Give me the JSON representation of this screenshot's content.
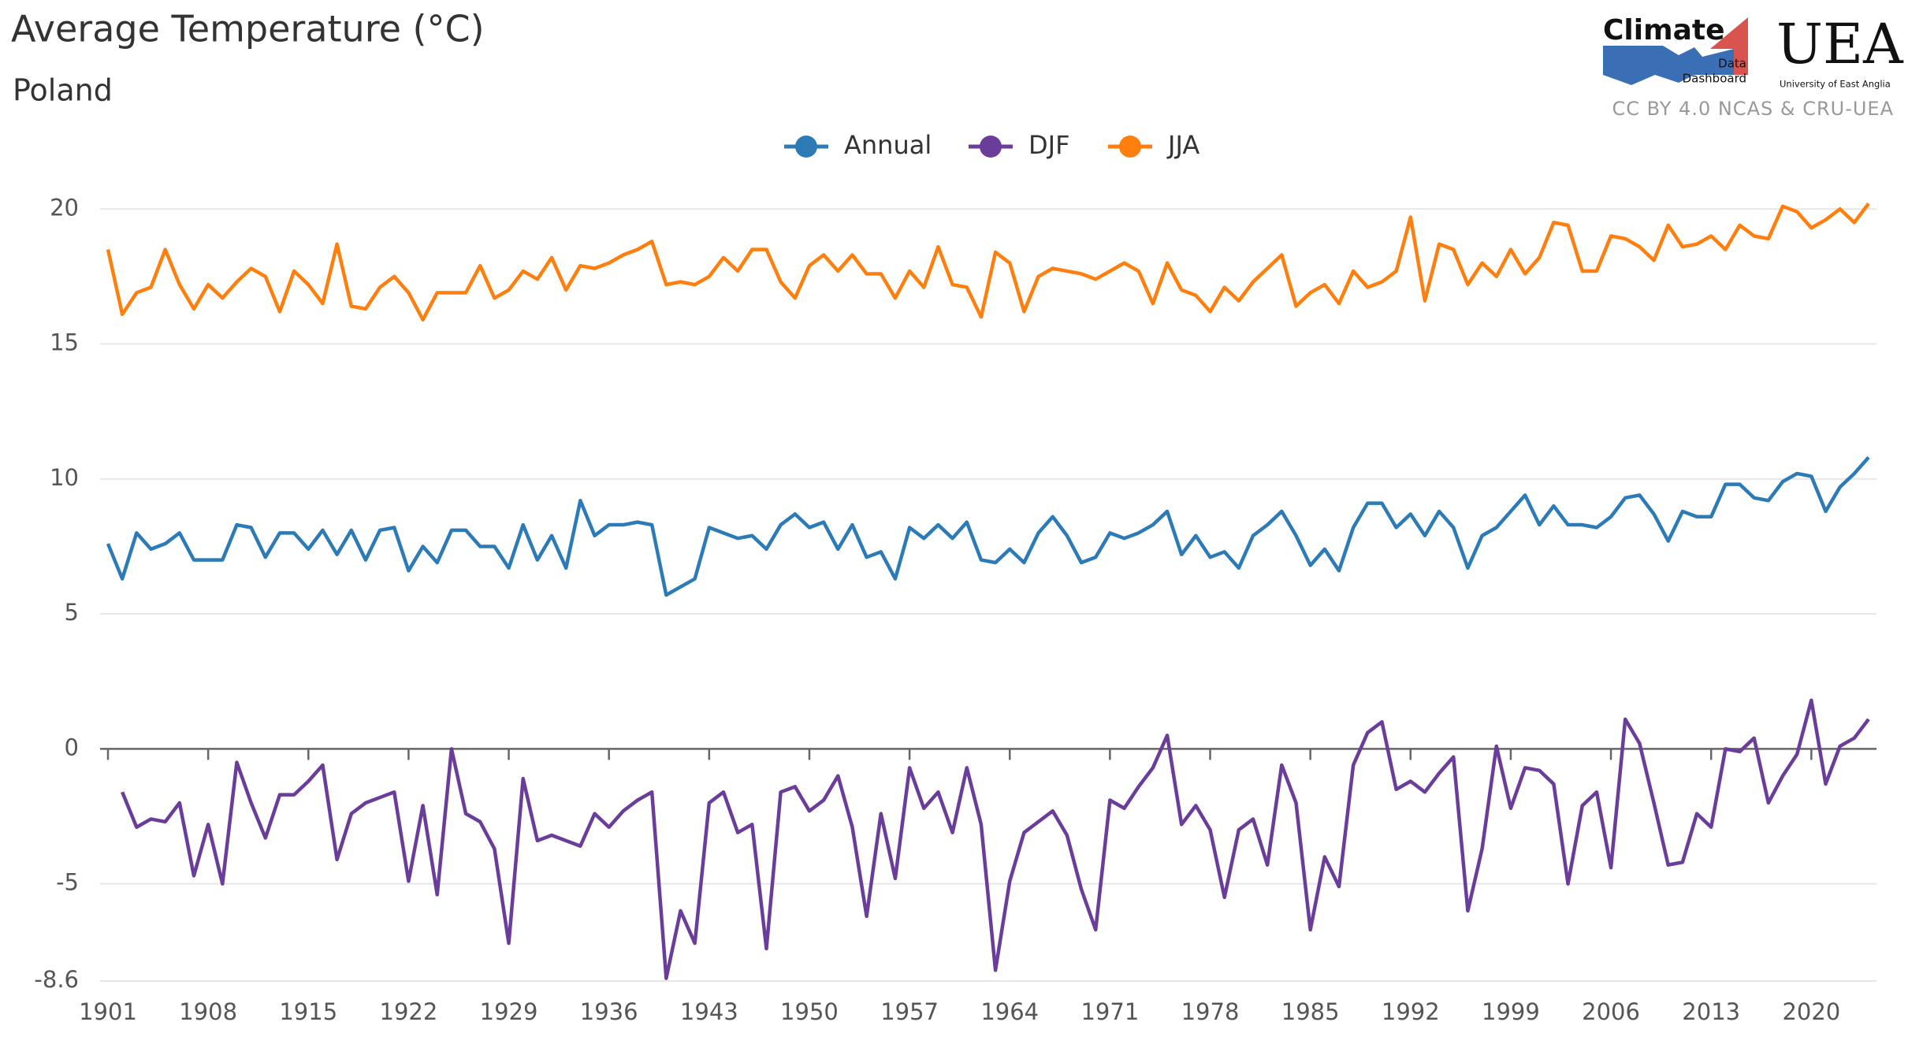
{
  "chart_data": {
    "type": "line",
    "title": "Average Temperature (°C)",
    "subtitle": "Poland",
    "x": [
      1901,
      1902,
      1903,
      1904,
      1905,
      1906,
      1907,
      1908,
      1909,
      1910,
      1911,
      1912,
      1913,
      1914,
      1915,
      1916,
      1917,
      1918,
      1919,
      1920,
      1921,
      1922,
      1923,
      1924,
      1925,
      1926,
      1927,
      1928,
      1929,
      1930,
      1931,
      1932,
      1933,
      1934,
      1935,
      1936,
      1937,
      1938,
      1939,
      1940,
      1941,
      1942,
      1943,
      1944,
      1945,
      1946,
      1947,
      1948,
      1949,
      1950,
      1951,
      1952,
      1953,
      1954,
      1955,
      1956,
      1957,
      1958,
      1959,
      1960,
      1961,
      1962,
      1963,
      1964,
      1965,
      1966,
      1967,
      1968,
      1969,
      1970,
      1971,
      1972,
      1973,
      1974,
      1975,
      1976,
      1977,
      1978,
      1979,
      1980,
      1981,
      1982,
      1983,
      1984,
      1985,
      1986,
      1987,
      1988,
      1989,
      1990,
      1991,
      1992,
      1993,
      1994,
      1995,
      1996,
      1997,
      1998,
      1999,
      2000,
      2001,
      2002,
      2003,
      2004,
      2005,
      2006,
      2007,
      2008,
      2009,
      2010,
      2011,
      2012,
      2013,
      2014,
      2015,
      2016,
      2017,
      2018,
      2019,
      2020,
      2021,
      2022,
      2023,
      2024
    ],
    "series": [
      {
        "name": "Annual",
        "color": "#2c7bb6",
        "values": [
          7.6,
          6.3,
          8.0,
          7.4,
          7.6,
          8.0,
          7.0,
          7.0,
          7.0,
          8.3,
          8.2,
          7.1,
          8.0,
          8.0,
          7.4,
          8.1,
          7.2,
          8.1,
          7.0,
          8.1,
          8.2,
          6.6,
          7.5,
          6.9,
          8.1,
          8.1,
          7.5,
          7.5,
          6.7,
          8.3,
          7.0,
          7.9,
          6.7,
          9.2,
          7.9,
          8.3,
          8.3,
          8.4,
          8.3,
          5.7,
          6.0,
          6.3,
          8.2,
          8.0,
          7.8,
          7.9,
          7.4,
          8.3,
          8.7,
          8.2,
          8.4,
          7.4,
          8.3,
          7.1,
          7.3,
          6.3,
          8.2,
          7.8,
          8.3,
          7.8,
          8.4,
          7.0,
          6.9,
          7.4,
          6.9,
          8.0,
          8.6,
          7.9,
          6.9,
          7.1,
          8.0,
          7.8,
          8.0,
          8.3,
          8.8,
          7.2,
          7.9,
          7.1,
          7.3,
          6.7,
          7.9,
          8.3,
          8.8,
          7.9,
          6.8,
          7.4,
          6.6,
          8.2,
          9.1,
          9.1,
          8.2,
          8.7,
          7.9,
          8.8,
          8.2,
          6.7,
          7.9,
          8.2,
          8.8,
          9.4,
          8.3,
          9.0,
          8.3,
          8.3,
          8.2,
          8.6,
          9.3,
          9.4,
          8.7,
          7.7,
          8.8,
          8.6,
          8.6,
          9.8,
          9.8,
          9.3,
          9.2,
          9.9,
          10.2,
          10.1,
          8.8,
          9.7,
          10.2,
          10.8
        ]
      },
      {
        "name": "DJF",
        "color": "#6a3d9a",
        "values": [
          null,
          -1.6,
          -2.9,
          -2.6,
          -2.7,
          -2.0,
          -4.7,
          -2.8,
          -5.0,
          -0.5,
          -2.0,
          -3.3,
          -1.7,
          -1.7,
          -1.2,
          -0.6,
          -4.1,
          -2.4,
          -2.0,
          -1.8,
          -1.6,
          -4.9,
          -2.1,
          -5.4,
          0.0,
          -2.4,
          -2.7,
          -3.7,
          -7.2,
          -1.1,
          -3.4,
          -3.2,
          -3.4,
          -3.6,
          -2.4,
          -2.9,
          -2.3,
          -1.9,
          -1.6,
          -8.5,
          -6.0,
          -7.2,
          -2.0,
          -1.6,
          -3.1,
          -2.8,
          -7.4,
          -1.6,
          -1.4,
          -2.3,
          -1.9,
          -1.0,
          -2.9,
          -6.2,
          -2.4,
          -4.8,
          -0.7,
          -2.2,
          -1.6,
          -3.1,
          -0.7,
          -2.8,
          -8.2,
          -4.9,
          -3.1,
          -2.7,
          -2.3,
          -3.2,
          -5.2,
          -6.7,
          -1.9,
          -2.2,
          -1.4,
          -0.7,
          0.5,
          -2.8,
          -2.1,
          -3.0,
          -5.5,
          -3.0,
          -2.6,
          -4.3,
          -0.6,
          -2.0,
          -6.7,
          -4.0,
          -5.1,
          -0.6,
          0.6,
          1.0,
          -1.5,
          -1.2,
          -1.6,
          -0.9,
          -0.3,
          -6.0,
          -3.7,
          0.1,
          -2.2,
          -0.7,
          -0.8,
          -1.3,
          -5.0,
          -2.1,
          -1.6,
          -4.4,
          1.1,
          0.2,
          -2.0,
          -4.3,
          -4.2,
          -2.4,
          -2.9,
          0.0,
          -0.1,
          0.4,
          -2.0,
          -1.0,
          -0.2,
          1.8,
          -1.3,
          0.1,
          0.4,
          1.1
        ]
      },
      {
        "name": "JJA",
        "color": "#ff7f0e",
        "values": [
          18.5,
          16.1,
          16.9,
          17.1,
          18.5,
          17.2,
          16.3,
          17.2,
          16.7,
          17.3,
          17.8,
          17.5,
          16.2,
          17.7,
          17.2,
          16.5,
          18.7,
          16.4,
          16.3,
          17.1,
          17.5,
          16.9,
          15.9,
          16.9,
          16.9,
          16.9,
          17.9,
          16.7,
          17.0,
          17.7,
          17.4,
          18.2,
          17.0,
          17.9,
          17.8,
          18.0,
          18.3,
          18.5,
          18.8,
          17.2,
          17.3,
          17.2,
          17.5,
          18.2,
          17.7,
          18.5,
          18.5,
          17.3,
          16.7,
          17.9,
          18.3,
          17.7,
          18.3,
          17.6,
          17.6,
          16.7,
          17.7,
          17.1,
          18.6,
          17.2,
          17.1,
          16.0,
          18.4,
          18.0,
          16.2,
          17.5,
          17.8,
          17.7,
          17.6,
          17.4,
          17.7,
          18.0,
          17.7,
          16.5,
          18.0,
          17.0,
          16.8,
          16.2,
          17.1,
          16.6,
          17.3,
          17.8,
          18.3,
          16.4,
          16.9,
          17.2,
          16.5,
          17.7,
          17.1,
          17.3,
          17.7,
          19.7,
          16.6,
          18.7,
          18.5,
          17.2,
          18.0,
          17.5,
          18.5,
          17.6,
          18.2,
          19.5,
          19.4,
          17.7,
          17.7,
          19.0,
          18.9,
          18.6,
          18.1,
          19.4,
          18.6,
          18.7,
          19.0,
          18.5,
          19.4,
          19.0,
          18.9,
          20.1,
          19.9,
          19.3,
          19.6,
          20.0,
          19.5,
          20.2
        ]
      }
    ],
    "xlim": [
      1901,
      2024
    ],
    "xticks": [
      1901,
      1908,
      1915,
      1922,
      1929,
      1936,
      1943,
      1950,
      1957,
      1964,
      1971,
      1978,
      1985,
      1992,
      1999,
      2006,
      2013,
      2020
    ],
    "ylim": [
      -8.6,
      21
    ],
    "yticks": [
      -8.6,
      -5,
      0,
      5,
      10,
      15,
      20
    ],
    "grid": true,
    "legend": "top"
  },
  "branding": {
    "logo_word": "Climate",
    "logo_line1": "Data",
    "logo_line2": "Dashboard",
    "uea": "UEA",
    "uea_name": "University of East Anglia",
    "license": "CC BY 4.0 NCAS & CRU-UEA"
  }
}
